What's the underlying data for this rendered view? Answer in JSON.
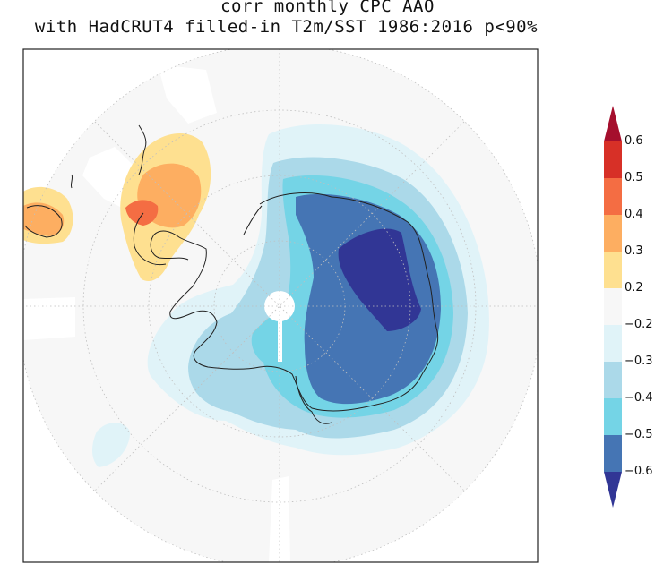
{
  "title": {
    "line1": "corr monthly CPC AAO",
    "line2": "with HadCRUT4 filled-in T2m/SST 1986:2016 p<90%"
  },
  "colorbar": {
    "levels": [
      {
        "label": "0.6",
        "value": 0.6
      },
      {
        "label": "0.5",
        "value": 0.5
      },
      {
        "label": "0.4",
        "value": 0.4
      },
      {
        "label": "0.3",
        "value": 0.3
      },
      {
        "label": "0.2",
        "value": 0.2
      },
      {
        "label": "−0.2",
        "value": -0.2
      },
      {
        "label": "−0.3",
        "value": -0.3
      },
      {
        "label": "−0.4",
        "value": -0.4
      },
      {
        "label": "−0.5",
        "value": -0.5
      },
      {
        "label": "−0.6",
        "value": -0.6
      }
    ],
    "colors": {
      "gt_0_6": "#a50f2d",
      "0_5_to_0_6": "#d73027",
      "0_4_to_0_5": "#f46d43",
      "0_3_to_0_4": "#fdae61",
      "0_2_to_0_3": "#fee090",
      "neutral": "#f7f7f7",
      "m0_2_to_m0_3": "#e0f3f8",
      "m0_3_to_m0_4": "#abd9e9",
      "m0_4_to_m0_5": "#74d4e6",
      "m0_5_to_m0_6": "#4575b4",
      "lt_m0_6": "#313695"
    }
  }
}
